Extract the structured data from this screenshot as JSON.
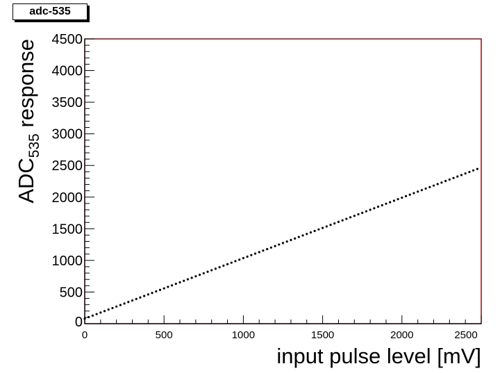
{
  "title": "adc-535",
  "chart_data": {
    "type": "scatter",
    "title": "adc-535",
    "xlabel": "input pulse level [mV]",
    "ylabel": {
      "main": "ADC",
      "subscript": "535",
      "suffix": " response"
    },
    "xlim": [
      0,
      2500
    ],
    "ylim": [
      0,
      4500
    ],
    "x_ticks": [
      "0",
      "500",
      "1000",
      "1500",
      "2000",
      "2500"
    ],
    "y_ticks": [
      "0",
      "500",
      "1000",
      "1500",
      "2000",
      "2500",
      "3000",
      "3500",
      "4000",
      "4500"
    ],
    "grid": false,
    "legend": "none",
    "marker_color": "#000000",
    "frame_color": "#7a1010",
    "series": [
      {
        "x_start": 0,
        "x_end": 2475,
        "x_step": 25,
        "y_at_x_start": 80,
        "y_at_x_end": 2445
      }
    ]
  }
}
